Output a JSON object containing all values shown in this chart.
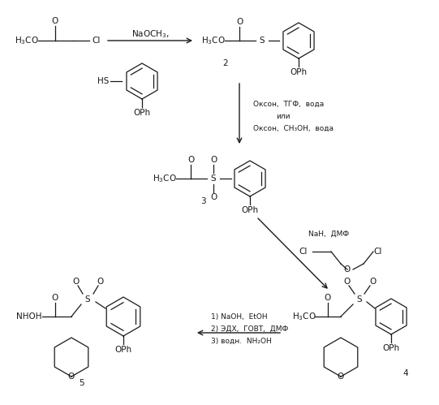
{
  "background_color": "#ffffff",
  "line_color": "#1a1a1a",
  "text_color": "#1a1a1a",
  "figsize": [
    5.41,
    4.99
  ],
  "dpi": 100,
  "compounds": {
    "c1_formula": "H$_3$CO",
    "c2_label": "2",
    "c3_label": "3",
    "c4_label": "4",
    "c5_label": "5"
  },
  "arrow1_label": "NaOCH$_3$,",
  "arrow2_label1": "Оксон,  ТГФ,  вода",
  "arrow2_label2": "или",
  "arrow2_label3": "Оксон,  CH₃OH,  вода",
  "arrow3_label1": "NaH,  ДМФ",
  "arrow4_label1": "1) NaOH,  EtOH",
  "arrow4_label2": "2) ЭДХ,  ГОВТ,  ДМФ",
  "arrow4_label3": "3) водн.  NH₂OH",
  "cl_reagent_left": "Cl",
  "cl_reagent_right": "Cl",
  "o_reagent": "O"
}
